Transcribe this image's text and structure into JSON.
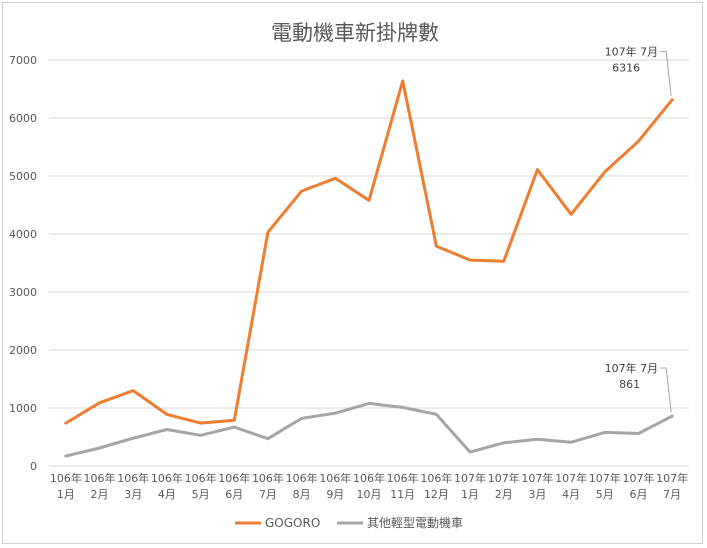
{
  "chart_data": {
    "type": "line",
    "title": "電動機車新掛牌數",
    "categories": [
      [
        "106年",
        "1月"
      ],
      [
        "106年",
        "2月"
      ],
      [
        "106年",
        "3月"
      ],
      [
        "106年",
        "4月"
      ],
      [
        "106年",
        "5月"
      ],
      [
        "106年",
        "6月"
      ],
      [
        "106年",
        "7月"
      ],
      [
        "106年",
        "8月"
      ],
      [
        "106年",
        "9月"
      ],
      [
        "106年",
        "10月"
      ],
      [
        "106年",
        "11月"
      ],
      [
        "106年",
        "12月"
      ],
      [
        "107年",
        "1月"
      ],
      [
        "107年",
        "2月"
      ],
      [
        "107年",
        "3月"
      ],
      [
        "107年",
        "4月"
      ],
      [
        "107年",
        "5月"
      ],
      [
        "107年",
        "6月"
      ],
      [
        "107年",
        "7月"
      ]
    ],
    "ylim": [
      0,
      7000
    ],
    "yticks": [
      0,
      1000,
      2000,
      3000,
      4000,
      5000,
      6000,
      7000
    ],
    "grid": true,
    "legend_position": "bottom",
    "series": [
      {
        "name": "GOGORO",
        "color": "#ED7D31",
        "values": [
          740,
          1090,
          1300,
          890,
          740,
          790,
          4030,
          4740,
          4960,
          4580,
          6640,
          3790,
          3550,
          3530,
          5110,
          4340,
          5070,
          5600,
          6316
        ]
      },
      {
        "name": "其他輕型電動機車",
        "color": "#A5A5A5",
        "values": [
          170,
          310,
          480,
          630,
          530,
          670,
          470,
          820,
          910,
          1080,
          1010,
          890,
          240,
          400,
          460,
          410,
          580,
          560,
          861
        ]
      }
    ],
    "annotations": [
      {
        "series": 0,
        "index": 18,
        "line1": "107年 7月",
        "line2": "6316"
      },
      {
        "series": 1,
        "index": 18,
        "line1": "107年 7月",
        "line2": "861"
      }
    ]
  }
}
